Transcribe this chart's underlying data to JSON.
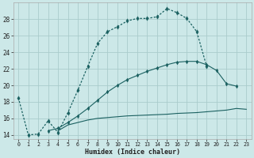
{
  "xlabel": "Humidex (Indice chaleur)",
  "background_color": "#cce8e8",
  "grid_color": "#aacccc",
  "line_color": "#1a6060",
  "x_humidex": [
    0,
    1,
    2,
    3,
    4,
    5,
    6,
    7,
    8,
    9,
    10,
    11,
    12,
    13,
    14,
    15,
    16,
    17,
    18,
    19,
    20,
    21,
    22,
    23
  ],
  "curve1_y": [
    18.5,
    14.0,
    14.1,
    15.7,
    14.3,
    16.7,
    19.4,
    22.3,
    25.1,
    26.5,
    27.1,
    27.8,
    28.1,
    28.1,
    28.3,
    29.3,
    28.8,
    28.1,
    26.5,
    22.3,
    null,
    null,
    null,
    null
  ],
  "curve1_dotted": true,
  "curve2_y": [
    null,
    null,
    null,
    null,
    14.5,
    15.2,
    15.5,
    15.8,
    16.0,
    16.1,
    16.2,
    16.3,
    16.35,
    16.4,
    16.45,
    16.5,
    16.6,
    16.65,
    16.7,
    16.8,
    16.9,
    17.0,
    17.2,
    17.1
  ],
  "curve3_y": [
    null,
    null,
    null,
    14.5,
    14.8,
    15.5,
    16.3,
    17.2,
    18.2,
    19.2,
    20.0,
    20.7,
    21.2,
    21.7,
    22.1,
    22.5,
    22.8,
    22.9,
    22.9,
    22.5,
    21.8,
    20.2,
    19.9,
    null
  ],
  "curve3_dotted": false,
  "ylim": [
    13.5,
    30.0
  ],
  "xlim": [
    -0.5,
    23.5
  ],
  "yticks": [
    14,
    16,
    18,
    20,
    22,
    24,
    26,
    28
  ],
  "xticks": [
    0,
    1,
    2,
    3,
    4,
    5,
    6,
    7,
    8,
    9,
    10,
    11,
    12,
    13,
    14,
    15,
    16,
    17,
    18,
    19,
    20,
    21,
    22,
    23
  ]
}
